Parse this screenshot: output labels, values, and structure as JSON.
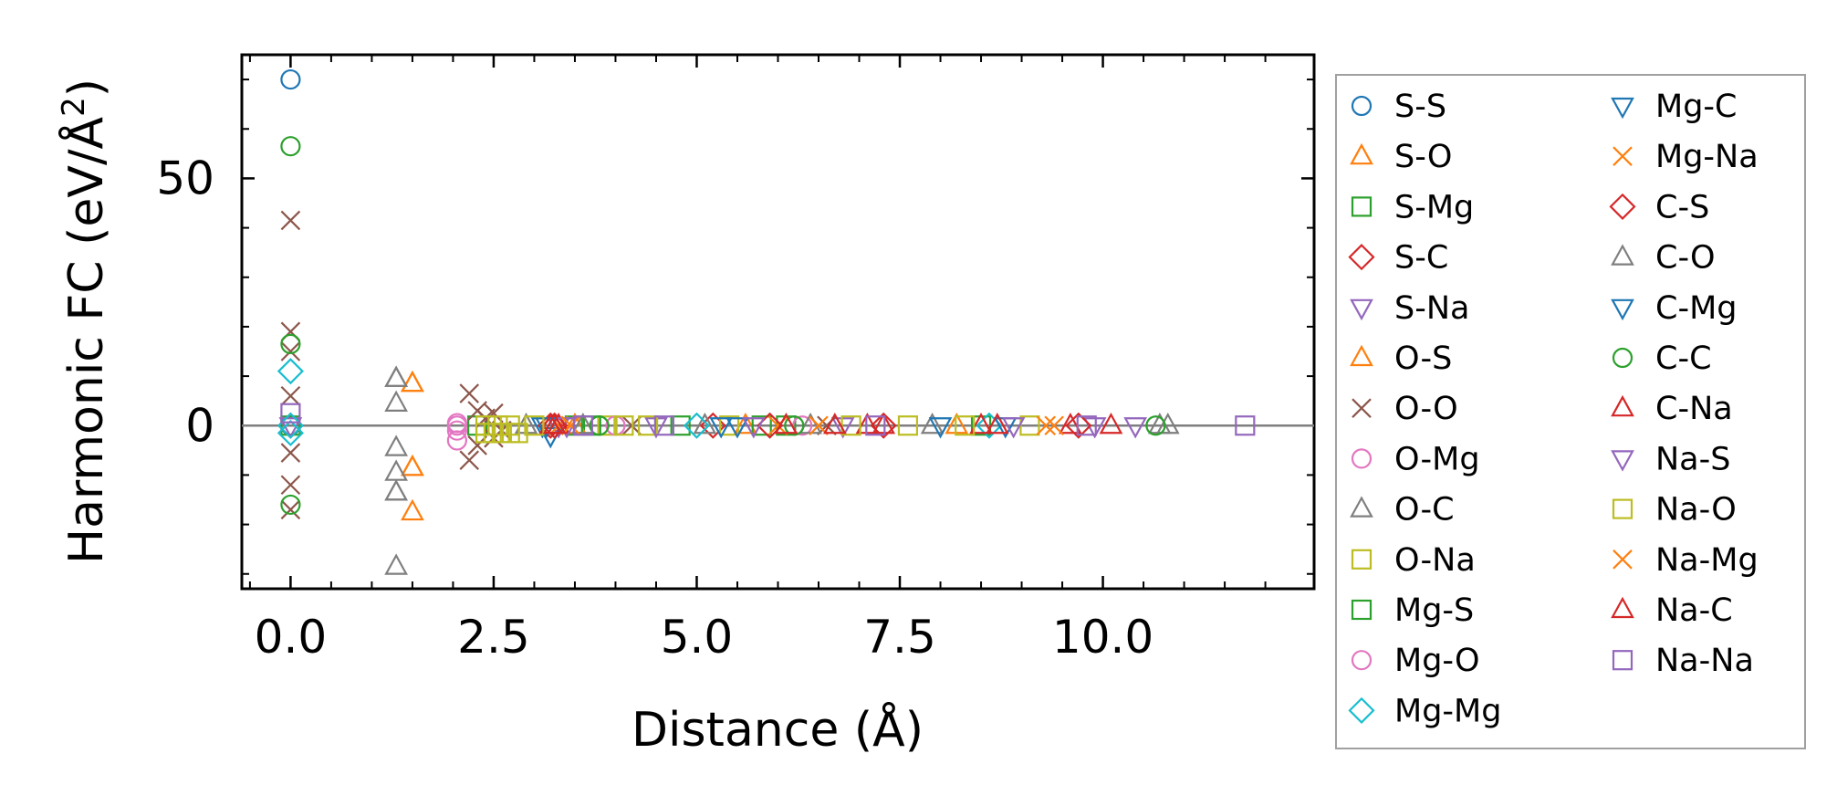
{
  "chart_data": {
    "type": "scatter",
    "title": "",
    "xlabel": "Distance (Å)",
    "ylabel_main": "Harmonic FC (eV/Å",
    "ylabel_sup": "2",
    "ylabel_close": ")",
    "xlim": [
      -0.6,
      12.6
    ],
    "ylim": [
      -33,
      75
    ],
    "xticks": [
      0.0,
      2.5,
      5.0,
      7.5,
      10.0
    ],
    "xtick_labels": [
      "0.0",
      "2.5",
      "5.0",
      "7.5",
      "10.0"
    ],
    "yticks": [
      0,
      50
    ],
    "ytick_labels": [
      "0",
      "50"
    ],
    "legend_position": "outside right",
    "series": [
      {
        "name": "S-S",
        "marker": "circle",
        "color": "#1f77b4",
        "points": [
          [
            0,
            70
          ],
          [
            0,
            0
          ]
        ]
      },
      {
        "name": "S-O",
        "marker": "triangle-up",
        "color": "#ff7f0e",
        "points": [
          [
            1.5,
            8.5
          ],
          [
            1.5,
            -8.5
          ],
          [
            1.5,
            -17.5
          ]
        ]
      },
      {
        "name": "S-Mg",
        "marker": "square",
        "color": "#2ca02c",
        "points": [
          [
            0,
            0
          ],
          [
            2.3,
            0
          ],
          [
            3.5,
            0
          ],
          [
            4.8,
            0
          ],
          [
            6.1,
            0
          ]
        ]
      },
      {
        "name": "S-C",
        "marker": "diamond",
        "color": "#d62728",
        "points": [
          [
            0,
            0
          ],
          [
            3.2,
            0
          ],
          [
            5.2,
            0
          ],
          [
            7.3,
            0
          ]
        ]
      },
      {
        "name": "S-Na",
        "marker": "triangle-down",
        "color": "#9467bd",
        "points": [
          [
            0,
            0
          ],
          [
            3.3,
            0
          ],
          [
            4.5,
            0
          ],
          [
            6.8,
            0
          ],
          [
            9.9,
            0
          ]
        ]
      },
      {
        "name": "O-S",
        "marker": "triangle-up",
        "color": "#ff7f0e",
        "points": [
          [
            1.5,
            8.5
          ],
          [
            1.5,
            -8.5
          ],
          [
            3.5,
            0
          ],
          [
            5.6,
            0
          ],
          [
            8.2,
            0
          ]
        ]
      },
      {
        "name": "O-O",
        "marker": "x",
        "color": "#8c564b",
        "points": [
          [
            0,
            41.5
          ],
          [
            0,
            19
          ],
          [
            0,
            15
          ],
          [
            0,
            6
          ],
          [
            0,
            -5.5
          ],
          [
            0,
            -12
          ],
          [
            0,
            -17
          ],
          [
            2.2,
            6.5
          ],
          [
            2.2,
            -7
          ],
          [
            2.3,
            3
          ],
          [
            2.3,
            -4
          ],
          [
            2.4,
            1.5
          ],
          [
            2.5,
            2.5
          ],
          [
            2.5,
            -2.5
          ],
          [
            2.6,
            -1
          ],
          [
            4.2,
            0
          ],
          [
            6.6,
            0
          ]
        ]
      },
      {
        "name": "O-Mg",
        "marker": "circle",
        "color": "#e377c2",
        "points": [
          [
            2.05,
            0.5
          ],
          [
            2.05,
            -1
          ],
          [
            2.05,
            -3
          ]
        ]
      },
      {
        "name": "O-C",
        "marker": "triangle-up",
        "color": "#7f7f7f",
        "points": [
          [
            1.3,
            9.5
          ],
          [
            1.3,
            4.5
          ],
          [
            1.3,
            -4.5
          ],
          [
            1.3,
            -9.5
          ],
          [
            1.3,
            -13.5
          ],
          [
            1.3,
            -28.5
          ],
          [
            2.9,
            0
          ],
          [
            5.1,
            0
          ],
          [
            7.9,
            0
          ],
          [
            10.7,
            0
          ]
        ]
      },
      {
        "name": "O-Na",
        "marker": "square",
        "color": "#bcbd22",
        "points": [
          [
            2.4,
            -1.5
          ],
          [
            2.5,
            -1.5
          ],
          [
            2.6,
            -1.5
          ],
          [
            2.7,
            -1.5
          ],
          [
            2.8,
            -1.5
          ],
          [
            3.9,
            0
          ],
          [
            5.4,
            0
          ],
          [
            7.6,
            0
          ],
          [
            9.1,
            0
          ]
        ]
      },
      {
        "name": "Mg-S",
        "marker": "square",
        "color": "#2ca02c",
        "points": [
          [
            3.7,
            0
          ],
          [
            5.8,
            0
          ],
          [
            8.5,
            0
          ]
        ]
      },
      {
        "name": "Mg-O",
        "marker": "circle",
        "color": "#e377c2",
        "points": [
          [
            2.05,
            0
          ],
          [
            4.0,
            0
          ],
          [
            6.3,
            0
          ]
        ]
      },
      {
        "name": "Mg-Mg",
        "marker": "diamond",
        "color": "#17becf",
        "points": [
          [
            0,
            11
          ],
          [
            0,
            0
          ],
          [
            0,
            -1.5
          ],
          [
            5.0,
            0
          ],
          [
            8.6,
            0
          ]
        ]
      },
      {
        "name": "Mg-C",
        "marker": "triangle-down",
        "color": "#1f77b4",
        "points": [
          [
            3.1,
            0
          ],
          [
            3.2,
            -2
          ],
          [
            5.3,
            0
          ],
          [
            8.0,
            0
          ]
        ]
      },
      {
        "name": "Mg-Na",
        "marker": "x",
        "color": "#ff7f0e",
        "points": [
          [
            3.3,
            0
          ],
          [
            6.0,
            0
          ],
          [
            9.3,
            0
          ]
        ]
      },
      {
        "name": "C-S",
        "marker": "diamond",
        "color": "#d62728",
        "points": [
          [
            3.25,
            0
          ],
          [
            5.9,
            0
          ],
          [
            9.7,
            0
          ]
        ]
      },
      {
        "name": "C-O",
        "marker": "triangle-up",
        "color": "#7f7f7f",
        "points": [
          [
            1.3,
            9.5
          ],
          [
            1.3,
            -13.5
          ],
          [
            3.6,
            0
          ],
          [
            6.4,
            0
          ],
          [
            10.8,
            0
          ]
        ]
      },
      {
        "name": "C-Mg",
        "marker": "triangle-down",
        "color": "#1f77b4",
        "points": [
          [
            3.15,
            0
          ],
          [
            5.5,
            0
          ],
          [
            8.8,
            0
          ]
        ]
      },
      {
        "name": "C-C",
        "marker": "circle",
        "color": "#2ca02c",
        "points": [
          [
            0,
            56.5
          ],
          [
            0,
            16.5
          ],
          [
            0,
            -16
          ],
          [
            3.8,
            0
          ],
          [
            6.2,
            0
          ],
          [
            10.65,
            0
          ]
        ]
      },
      {
        "name": "C-Na",
        "marker": "triangle-up",
        "color": "#d62728",
        "points": [
          [
            3.2,
            0
          ],
          [
            3.3,
            0
          ],
          [
            6.1,
            0
          ],
          [
            7.1,
            0
          ],
          [
            8.5,
            0
          ],
          [
            9.6,
            0
          ]
        ]
      },
      {
        "name": "Na-S",
        "marker": "triangle-down",
        "color": "#9467bd",
        "points": [
          [
            3.4,
            0
          ],
          [
            5.7,
            0
          ],
          [
            8.9,
            0
          ],
          [
            10.4,
            0
          ]
        ]
      },
      {
        "name": "Na-O",
        "marker": "square",
        "color": "#bcbd22",
        "points": [
          [
            2.4,
            0
          ],
          [
            2.55,
            0
          ],
          [
            2.7,
            0
          ],
          [
            3.0,
            0
          ],
          [
            4.1,
            0
          ],
          [
            4.4,
            0
          ],
          [
            6.9,
            0
          ],
          [
            8.3,
            0
          ]
        ]
      },
      {
        "name": "Na-Mg",
        "marker": "x",
        "color": "#ff7f0e",
        "points": [
          [
            3.45,
            0
          ],
          [
            6.5,
            0
          ],
          [
            9.4,
            0
          ]
        ]
      },
      {
        "name": "Na-C",
        "marker": "triangle-up",
        "color": "#d62728",
        "points": [
          [
            3.25,
            0
          ],
          [
            6.7,
            0
          ],
          [
            7.3,
            0
          ],
          [
            8.7,
            0
          ],
          [
            10.1,
            0
          ]
        ]
      },
      {
        "name": "Na-Na",
        "marker": "square",
        "color": "#9467bd",
        "points": [
          [
            0,
            2.5
          ],
          [
            3.6,
            0
          ],
          [
            4.6,
            0
          ],
          [
            7.2,
            0
          ],
          [
            9.8,
            0
          ],
          [
            11.75,
            0
          ]
        ]
      }
    ]
  }
}
